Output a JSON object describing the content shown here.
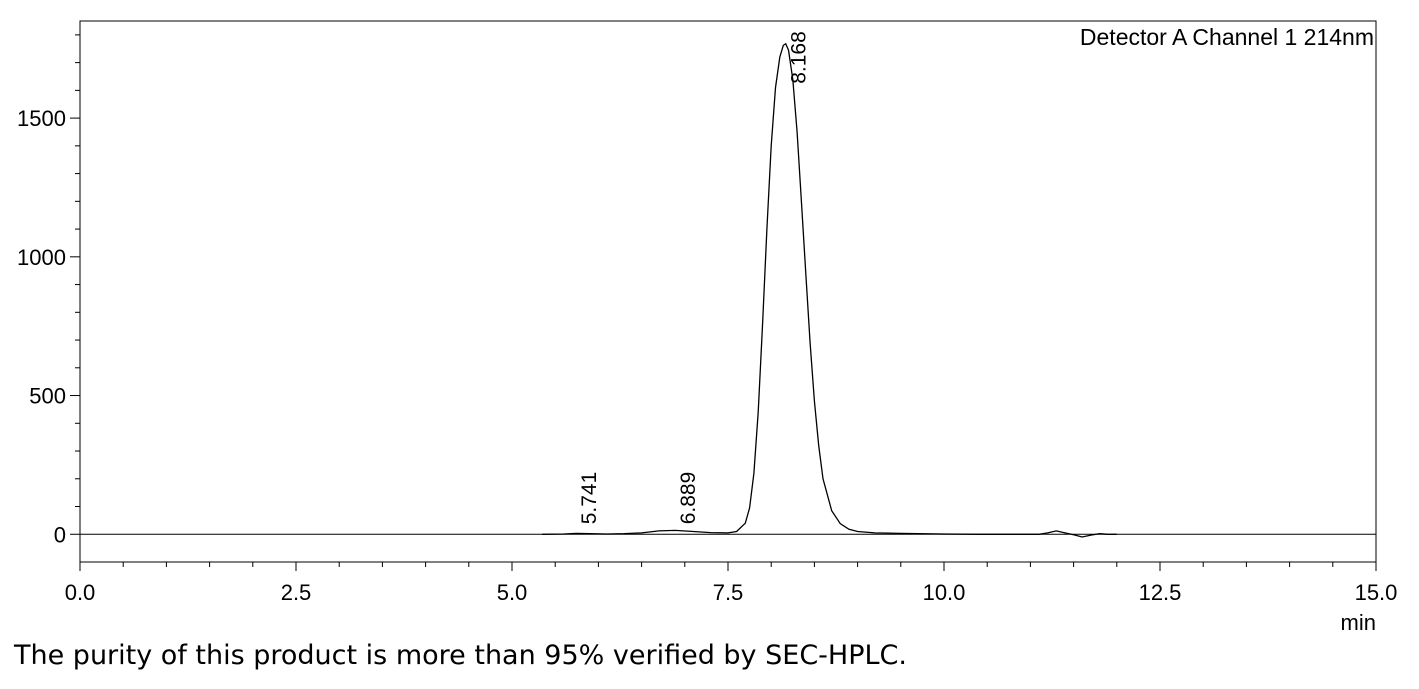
{
  "chart_data": {
    "type": "line",
    "channel_label": "Detector A Channel 1 214nm",
    "xlabel": "min",
    "ylabel": "",
    "xlim": [
      0,
      15
    ],
    "ylim": [
      -100,
      1850
    ],
    "x_ticks": [
      {
        "value": 0,
        "label": "0.0"
      },
      {
        "value": 2.5,
        "label": "2.5"
      },
      {
        "value": 5,
        "label": "5.0"
      },
      {
        "value": 7.5,
        "label": "7.5"
      },
      {
        "value": 10,
        "label": "10.0"
      },
      {
        "value": 12.5,
        "label": "12.5"
      },
      {
        "value": 15,
        "label": "15.0"
      }
    ],
    "x_minor_step": 0.5,
    "y_ticks": [
      {
        "value": 0,
        "label": "0"
      },
      {
        "value": 500,
        "label": "500"
      },
      {
        "value": 1000,
        "label": "1000"
      },
      {
        "value": 1500,
        "label": "1500"
      }
    ],
    "y_minor_step": 100,
    "grid": false,
    "series": [
      {
        "color": "#000000",
        "x": [
          5.35,
          5.6,
          5.741,
          5.9,
          6.1,
          6.3,
          6.5,
          6.7,
          6.889,
          7.1,
          7.3,
          7.5,
          7.6,
          7.7,
          7.75,
          7.8,
          7.85,
          7.9,
          7.95,
          8.0,
          8.05,
          8.1,
          8.14,
          8.168,
          8.2,
          8.25,
          8.3,
          8.35,
          8.4,
          8.45,
          8.5,
          8.55,
          8.6,
          8.7,
          8.8,
          8.9,
          9.0,
          9.2,
          9.5,
          10.0,
          10.4,
          11.1,
          11.2,
          11.3,
          11.4,
          11.5,
          11.6,
          11.7,
          11.8,
          11.9,
          12.0
        ],
        "y": [
          0,
          1,
          3,
          2,
          1,
          2,
          5,
          12,
          14,
          10,
          6,
          5,
          10,
          40,
          95,
          220,
          440,
          760,
          1100,
          1400,
          1610,
          1720,
          1762,
          1768,
          1745,
          1640,
          1450,
          1200,
          940,
          690,
          480,
          320,
          200,
          85,
          38,
          18,
          10,
          5,
          3,
          1,
          0,
          0,
          5,
          12,
          5,
          -2,
          -10,
          -3,
          2,
          0,
          0
        ]
      }
    ],
    "peaks": [
      {
        "x": 5.741,
        "label": "5.741"
      },
      {
        "x": 6.889,
        "label": "6.889"
      },
      {
        "x": 8.168,
        "label": "8.168"
      }
    ]
  },
  "caption": "The purity of this product is more than 95% verified by SEC-HPLC."
}
